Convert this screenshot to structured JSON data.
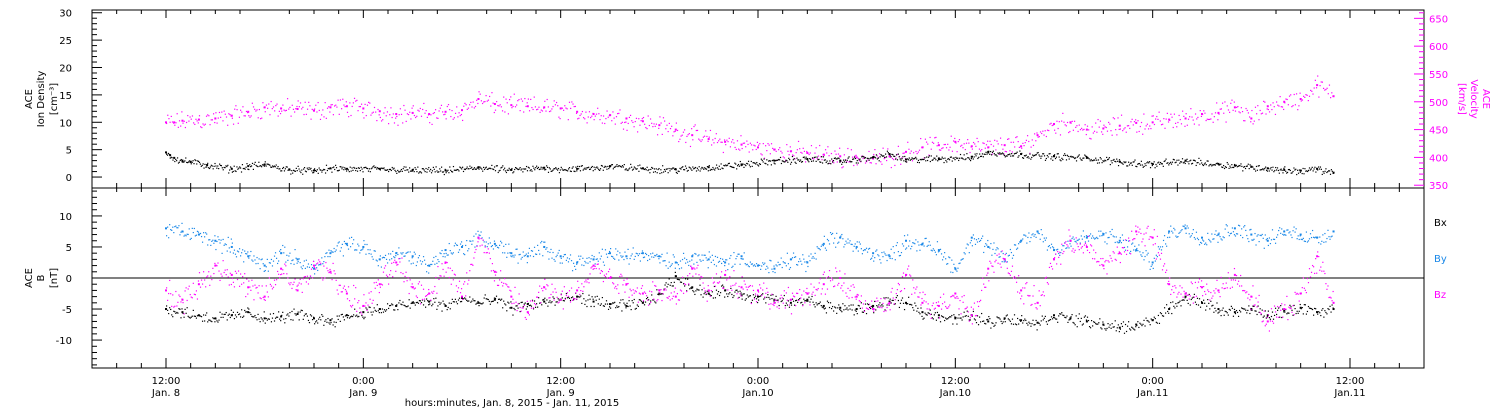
{
  "colors": {
    "density": "#000000",
    "velocity": "#ff00ff",
    "bx": "#000000",
    "by": "#1a88e8",
    "bz": "#ff00ff",
    "axis": "#000000"
  },
  "chart_data": [
    {
      "type": "scatter",
      "panel": "top",
      "title": "",
      "ylabel_left": [
        "ACE",
        "Ion Density",
        "[cm⁻³]"
      ],
      "ylabel_right": [
        "ACE",
        "Velocity",
        "[km/s]"
      ],
      "ylim_left": [
        -2,
        30.5
      ],
      "yticks_left": [
        0,
        5,
        10,
        15,
        20,
        25,
        30
      ],
      "ylim_right": [
        345,
        665
      ],
      "yticks_right": [
        350,
        400,
        450,
        500,
        550,
        600,
        650
      ],
      "grid": false,
      "series": [
        {
          "axis": "left",
          "color": "#000000",
          "x": [
            0.0,
            0.5,
            1.0,
            2.0,
            3.0,
            5.0,
            8.0,
            10.0,
            12.0,
            15.0,
            18.0,
            20.0,
            22.0,
            26.0,
            30.0,
            34.0,
            38.0,
            42.0,
            46.0,
            50.0,
            54.0,
            58.0,
            62.0,
            66.0,
            70.0,
            74.0,
            78.0,
            82.0,
            86.0,
            88.0,
            90.0,
            94.0,
            98.0,
            100.0,
            104.0,
            108.0,
            112.0,
            116.0,
            120.0,
            124.0,
            128.0,
            130.0,
            132.0,
            134.0,
            136.0,
            138.0,
            140.0,
            142.0
          ],
          "y": [
            4.5,
            4.0,
            3.5,
            3.0,
            2.8,
            2.2,
            1.5,
            2.0,
            2.3,
            1.4,
            1.2,
            1.6,
            1.5,
            1.5,
            1.3,
            1.2,
            1.8,
            1.3,
            1.7,
            1.5,
            2.0,
            1.6,
            1.4,
            1.8,
            2.3,
            3.0,
            3.3,
            3.0,
            3.6,
            4.2,
            3.2,
            3.4,
            3.7,
            4.5,
            4.2,
            3.8,
            3.5,
            2.8,
            2.4,
            3.0,
            2.4,
            2.1,
            1.9,
            1.6,
            1.3,
            1.2,
            1.5,
            0.8
          ]
        },
        {
          "axis": "right",
          "color": "#ff00ff",
          "x": [
            0.0,
            1.0,
            2.0,
            4.0,
            6.0,
            8.0,
            10.0,
            12.0,
            14.0,
            16.0,
            18.0,
            20.0,
            22.0,
            24.0,
            26.0,
            28.0,
            30.0,
            32.0,
            34.0,
            36.0,
            38.0,
            40.0,
            42.0,
            44.0,
            46.0,
            48.0,
            50.0,
            52.0,
            54.0,
            56.0,
            58.0,
            60.0,
            62.0,
            64.0,
            66.0,
            68.0,
            70.0,
            72.0,
            74.0,
            76.0,
            78.0,
            80.0,
            82.0,
            84.0,
            86.0,
            88.0,
            90.0,
            92.0,
            94.0,
            96.0,
            98.0,
            100.0,
            102.0,
            104.0,
            106.0,
            108.0,
            110.0,
            112.0,
            114.0,
            116.0,
            118.0,
            120.0,
            122.0,
            124.0,
            126.0,
            128.0,
            130.0,
            132.0,
            134.0,
            136.0,
            138.0,
            140.0,
            142.0
          ],
          "y": [
            463,
            463,
            466,
            468,
            470,
            475,
            482,
            490,
            488,
            487,
            484,
            490,
            492,
            488,
            483,
            478,
            480,
            478,
            482,
            485,
            505,
            496,
            494,
            492,
            490,
            488,
            482,
            478,
            476,
            470,
            465,
            458,
            450,
            440,
            433,
            428,
            423,
            418,
            414,
            411,
            408,
            405,
            402,
            400,
            398,
            402,
            410,
            418,
            422,
            428,
            420,
            418,
            422,
            420,
            440,
            460,
            463,
            450,
            452,
            457,
            462,
            463,
            468,
            470,
            478,
            480,
            490,
            470,
            492,
            500,
            505,
            530,
            510
          ]
        }
      ]
    },
    {
      "type": "scatter",
      "panel": "bottom",
      "title": "",
      "ylabel_left": [
        "ACE",
        "B",
        "[nT]"
      ],
      "ylim": [
        -14.5,
        14.5
      ],
      "yticks": [
        -10,
        -5,
        0,
        5,
        10
      ],
      "zero_line": true,
      "grid": false,
      "legend": {
        "position": "right",
        "entries": [
          "Bx",
          "By",
          "Bz"
        ]
      },
      "series": [
        {
          "name": "Bx",
          "color": "#000000",
          "x": [
            0.0,
            2.0,
            4.0,
            6.0,
            8.0,
            10.0,
            12.0,
            14.0,
            16.0,
            18.0,
            20.0,
            22.0,
            24.0,
            26.0,
            28.0,
            30.0,
            32.0,
            34.0,
            36.0,
            38.0,
            40.0,
            42.0,
            44.0,
            46.0,
            48.0,
            50.0,
            52.0,
            54.0,
            56.0,
            58.0,
            60.0,
            62.0,
            64.0,
            66.0,
            68.0,
            70.0,
            72.0,
            74.0,
            76.0,
            78.0,
            80.0,
            82.0,
            84.0,
            86.0,
            88.0,
            90.0,
            92.0,
            94.0,
            96.0,
            98.0,
            100.0,
            102.0,
            104.0,
            106.0,
            108.0,
            110.0,
            112.0,
            114.0,
            116.0,
            118.0,
            120.0,
            122.0,
            124.0,
            126.0,
            128.0,
            130.0,
            132.0,
            134.0,
            136.0,
            138.0,
            140.0,
            142.0
          ],
          "y": [
            -5.0,
            -5.5,
            -6.0,
            -6.5,
            -6.0,
            -5.5,
            -6.5,
            -6.2,
            -5.8,
            -6.5,
            -6.8,
            -6.0,
            -5.5,
            -5.0,
            -4.5,
            -4.0,
            -3.8,
            -4.5,
            -3.2,
            -4.0,
            -3.5,
            -4.8,
            -4.2,
            -3.8,
            -3.5,
            -3.0,
            -3.8,
            -4.2,
            -4.5,
            -4.0,
            -2.5,
            0.3,
            -1.5,
            -2.5,
            -2.0,
            -2.8,
            -3.0,
            -3.5,
            -4.0,
            -3.5,
            -4.5,
            -4.8,
            -5.0,
            -4.5,
            -3.8,
            -4.0,
            -5.5,
            -6.0,
            -6.5,
            -6.0,
            -7.0,
            -6.5,
            -6.8,
            -7.2,
            -6.0,
            -6.5,
            -7.0,
            -7.5,
            -8.0,
            -7.5,
            -6.8,
            -5.0,
            -3.0,
            -4.0,
            -5.0,
            -5.5,
            -5.0,
            -6.0,
            -5.2,
            -4.8,
            -5.5,
            -5.0
          ]
        },
        {
          "name": "By",
          "color": "#1a88e8",
          "x": [
            0.0,
            2.0,
            4.0,
            6.0,
            8.0,
            10.0,
            12.0,
            14.0,
            16.0,
            18.0,
            20.0,
            22.0,
            24.0,
            26.0,
            28.0,
            30.0,
            32.0,
            34.0,
            36.0,
            38.0,
            40.0,
            42.0,
            44.0,
            46.0,
            48.0,
            50.0,
            52.0,
            54.0,
            56.0,
            58.0,
            60.0,
            62.0,
            64.0,
            66.0,
            68.0,
            70.0,
            72.0,
            74.0,
            76.0,
            78.0,
            80.0,
            82.0,
            84.0,
            86.0,
            88.0,
            90.0,
            92.0,
            94.0,
            96.0,
            98.0,
            100.0,
            102.0,
            104.0,
            106.0,
            108.0,
            110.0,
            112.0,
            114.0,
            116.0,
            118.0,
            120.0,
            122.0,
            124.0,
            126.0,
            128.0,
            130.0,
            132.0,
            134.0,
            136.0,
            138.0,
            140.0,
            142.0
          ],
          "y": [
            8.0,
            7.5,
            7.0,
            6.0,
            5.0,
            3.5,
            2.0,
            4.0,
            3.0,
            1.5,
            4.0,
            5.5,
            5.0,
            3.0,
            4.0,
            3.5,
            2.0,
            4.5,
            5.0,
            6.5,
            5.5,
            4.0,
            3.5,
            5.0,
            3.5,
            2.5,
            3.0,
            4.0,
            3.5,
            4.0,
            3.5,
            2.5,
            3.5,
            3.0,
            2.5,
            3.5,
            2.0,
            1.5,
            3.0,
            2.5,
            5.5,
            6.5,
            5.0,
            4.0,
            3.5,
            6.0,
            5.5,
            4.5,
            1.5,
            6.5,
            5.0,
            3.0,
            6.0,
            7.5,
            4.5,
            6.0,
            6.5,
            7.0,
            6.0,
            4.5,
            2.5,
            7.5,
            8.0,
            6.5,
            7.0,
            8.0,
            7.0,
            6.0,
            7.5,
            7.0,
            6.5,
            7.5
          ]
        },
        {
          "name": "Bz",
          "color": "#ff00ff",
          "x": [
            0.0,
            2.0,
            4.0,
            6.0,
            8.0,
            10.0,
            12.0,
            14.0,
            16.0,
            18.0,
            20.0,
            22.0,
            24.0,
            26.0,
            28.0,
            30.0,
            32.0,
            34.0,
            36.0,
            38.0,
            40.0,
            42.0,
            44.0,
            46.0,
            48.0,
            50.0,
            52.0,
            54.0,
            56.0,
            58.0,
            60.0,
            62.0,
            64.0,
            66.0,
            68.0,
            70.0,
            72.0,
            74.0,
            76.0,
            78.0,
            80.0,
            82.0,
            84.0,
            86.0,
            88.0,
            90.0,
            92.0,
            94.0,
            96.0,
            98.0,
            100.0,
            102.0,
            104.0,
            106.0,
            108.0,
            110.0,
            112.0,
            114.0,
            116.0,
            118.0,
            120.0,
            122.0,
            124.0,
            126.0,
            128.0,
            130.0,
            132.0,
            134.0,
            136.0,
            138.0,
            140.0,
            142.0
          ],
          "y": [
            -2.0,
            -3.5,
            -1.0,
            2.0,
            0.5,
            -1.5,
            -3.0,
            1.5,
            -2.0,
            2.0,
            1.0,
            -2.5,
            -4.5,
            -1.0,
            2.5,
            -1.5,
            -2.5,
            2.5,
            -3.0,
            6.5,
            1.0,
            -3.0,
            -5.5,
            -1.5,
            -3.5,
            -2.0,
            2.0,
            0.0,
            -1.0,
            -2.5,
            -2.0,
            -3.0,
            1.5,
            -2.0,
            0.5,
            -1.5,
            -2.0,
            -4.0,
            -3.5,
            -2.5,
            -1.0,
            0.0,
            -3.0,
            -5.0,
            -4.0,
            0.5,
            -4.0,
            -4.5,
            -2.5,
            -6.0,
            1.5,
            3.0,
            -2.0,
            -4.0,
            3.0,
            6.0,
            5.0,
            2.0,
            4.0,
            7.5,
            6.5,
            -1.0,
            -2.5,
            -1.5,
            -2.0,
            0.5,
            -3.0,
            -7.0,
            -5.0,
            -2.5,
            3.5,
            -4.0
          ]
        }
      ]
    }
  ],
  "x_axis": {
    "xlim": [
      -9.0,
      153.0
    ],
    "ticks": [
      {
        "t": 0,
        "time": "12:00",
        "day": "Jan. 8"
      },
      {
        "t": 24,
        "time": "0:00",
        "day": "Jan. 9"
      },
      {
        "t": 48,
        "time": "12:00",
        "day": "Jan. 9"
      },
      {
        "t": 72,
        "time": "0:00",
        "day": "Jan.10"
      },
      {
        "t": 96,
        "time": "12:00",
        "day": "Jan.10"
      },
      {
        "t": 120,
        "time": "0:00",
        "day": "Jan.11"
      },
      {
        "t": 144,
        "time": "12:00",
        "day": "Jan.11"
      }
    ],
    "label": "hours:minutes, Jan. 8, 2015 - Jan. 11, 2015"
  }
}
